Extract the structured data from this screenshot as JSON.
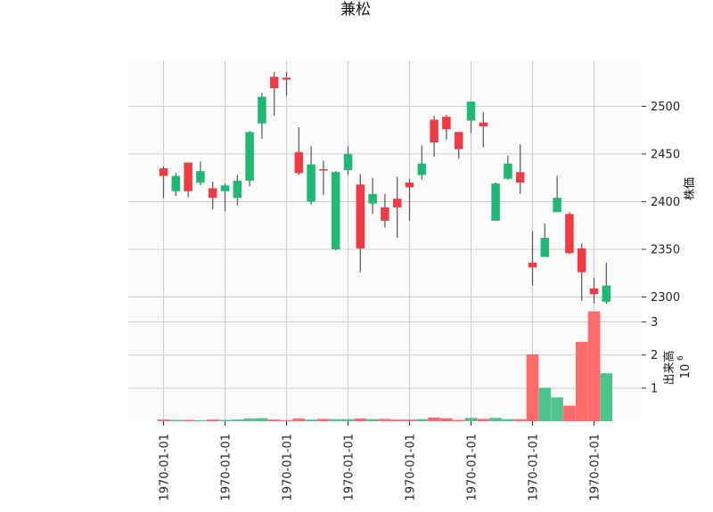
{
  "chart_data": {
    "type": "candlestick",
    "title": "兼松",
    "price_axis_label": "株価",
    "volume_axis_label": "出来高",
    "volume_multiplier_label": "10",
    "volume_multiplier_exp": "6",
    "x_tick_label": "1970-01-01",
    "x_tick_count": 8,
    "price_ticks": [
      2300,
      2350,
      2400,
      2450,
      2500
    ],
    "volume_ticks": [
      1,
      2,
      3
    ],
    "price_ylim": [
      2279,
      2548
    ],
    "volume_ylim": [
      0,
      3.15
    ],
    "colors": {
      "up": "#1fb874",
      "down": "#f03a44",
      "volume_up": "#4cc48c",
      "volume_down": "#ff6b6b",
      "wick": "#555555",
      "grid": "#cccccc",
      "panel_bg": "#fafafa"
    },
    "candles": [
      {
        "open": 2435,
        "high": 2437,
        "low": 2404,
        "close": 2427,
        "volume": 0.05
      },
      {
        "open": 2411,
        "high": 2430,
        "low": 2406,
        "close": 2427,
        "volume": 0.04
      },
      {
        "open": 2441,
        "high": 2441,
        "low": 2405,
        "close": 2411,
        "volume": 0.04
      },
      {
        "open": 2420,
        "high": 2442,
        "low": 2417,
        "close": 2432,
        "volume": 0.03
      },
      {
        "open": 2414,
        "high": 2421,
        "low": 2392,
        "close": 2404,
        "volume": 0.05
      },
      {
        "open": 2411,
        "high": 2419,
        "low": 2390,
        "close": 2417,
        "volume": 0.04
      },
      {
        "open": 2404,
        "high": 2428,
        "low": 2396,
        "close": 2422,
        "volume": 0.05
      },
      {
        "open": 2422,
        "high": 2474,
        "low": 2416,
        "close": 2473,
        "volume": 0.08
      },
      {
        "open": 2482,
        "high": 2514,
        "low": 2466,
        "close": 2510,
        "volume": 0.09
      },
      {
        "open": 2531,
        "high": 2536,
        "low": 2490,
        "close": 2519,
        "volume": 0.05
      },
      {
        "open": 2530,
        "high": 2536,
        "low": 2511,
        "close": 2528,
        "volume": 0.03
      },
      {
        "open": 2452,
        "high": 2478,
        "low": 2428,
        "close": 2430,
        "volume": 0.08
      },
      {
        "open": 2400,
        "high": 2458,
        "low": 2397,
        "close": 2439,
        "volume": 0.05
      },
      {
        "open": 2434,
        "high": 2443,
        "low": 2407,
        "close": 2433,
        "volume": 0.07
      },
      {
        "open": 2350,
        "high": 2432,
        "low": 2349,
        "close": 2431,
        "volume": 0.06
      },
      {
        "open": 2433,
        "high": 2458,
        "low": 2428,
        "close": 2450,
        "volume": 0.06
      },
      {
        "open": 2418,
        "high": 2429,
        "low": 2326,
        "close": 2351,
        "volume": 0.08
      },
      {
        "open": 2398,
        "high": 2425,
        "low": 2387,
        "close": 2408,
        "volume": 0.06
      },
      {
        "open": 2394,
        "high": 2408,
        "low": 2373,
        "close": 2380,
        "volume": 0.07
      },
      {
        "open": 2403,
        "high": 2426,
        "low": 2362,
        "close": 2394,
        "volume": 0.05
      },
      {
        "open": 2420,
        "high": 2424,
        "low": 2380,
        "close": 2415,
        "volume": 0.05
      },
      {
        "open": 2428,
        "high": 2459,
        "low": 2423,
        "close": 2440,
        "volume": 0.06
      },
      {
        "open": 2486,
        "high": 2490,
        "low": 2447,
        "close": 2462,
        "volume": 0.11
      },
      {
        "open": 2489,
        "high": 2491,
        "low": 2465,
        "close": 2476,
        "volume": 0.09
      },
      {
        "open": 2473,
        "high": 2473,
        "low": 2445,
        "close": 2455,
        "volume": 0.04
      },
      {
        "open": 2485,
        "high": 2505,
        "low": 2472,
        "close": 2505,
        "volume": 0.1
      },
      {
        "open": 2483,
        "high": 2494,
        "low": 2457,
        "close": 2479,
        "volume": 0.07
      },
      {
        "open": 2380,
        "high": 2420,
        "low": 2380,
        "close": 2419,
        "volume": 0.1
      },
      {
        "open": 2424,
        "high": 2448,
        "low": 2423,
        "close": 2440,
        "volume": 0.06
      },
      {
        "open": 2431,
        "high": 2460,
        "low": 2408,
        "close": 2420,
        "volume": 0.06
      },
      {
        "open": 2336,
        "high": 2369,
        "low": 2312,
        "close": 2331,
        "volume": 2.02
      },
      {
        "open": 2342,
        "high": 2377,
        "low": 2342,
        "close": 2362,
        "volume": 1.01
      },
      {
        "open": 2389,
        "high": 2427,
        "low": 2389,
        "close": 2404,
        "volume": 0.72
      },
      {
        "open": 2387,
        "high": 2389,
        "low": 2345,
        "close": 2346,
        "volume": 0.47
      },
      {
        "open": 2351,
        "high": 2356,
        "low": 2296,
        "close": 2326,
        "volume": 2.4
      },
      {
        "open": 2309,
        "high": 2320,
        "low": 2293,
        "close": 2303,
        "volume": 3.32
      },
      {
        "open": 2295,
        "high": 2336,
        "low": 2293,
        "close": 2312,
        "volume": 1.45
      }
    ]
  }
}
